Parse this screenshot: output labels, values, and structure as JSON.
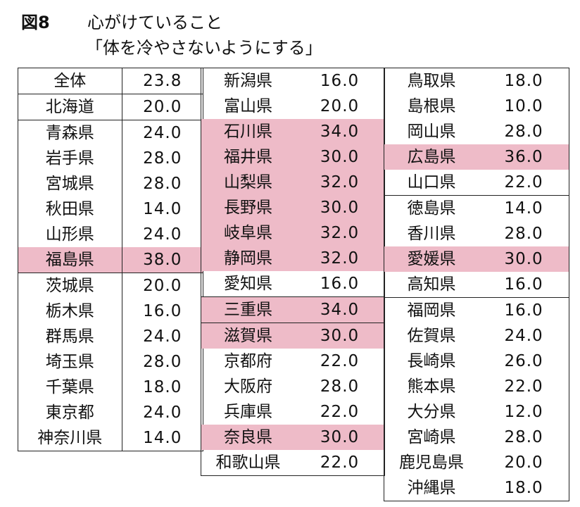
{
  "title": {
    "label": "図8",
    "line1": "心がけていること",
    "line2": "「体を冷やさないようにする」"
  },
  "columns": [
    {
      "id": "col1",
      "rows": [
        {
          "name": "全体",
          "value": "23.8",
          "highlight": false,
          "sep": false
        },
        {
          "name": "北海道",
          "value": "20.0",
          "highlight": false,
          "sep": true
        },
        {
          "name": "青森県",
          "value": "24.0",
          "highlight": false,
          "sep": true
        },
        {
          "name": "岩手県",
          "value": "28.0",
          "highlight": false,
          "sep": false
        },
        {
          "name": "宮城県",
          "value": "28.0",
          "highlight": false,
          "sep": false
        },
        {
          "name": "秋田県",
          "value": "14.0",
          "highlight": false,
          "sep": false
        },
        {
          "name": "山形県",
          "value": "24.0",
          "highlight": false,
          "sep": false
        },
        {
          "name": "福島県",
          "value": "38.0",
          "highlight": true,
          "sep": false
        },
        {
          "name": "茨城県",
          "value": "20.0",
          "highlight": false,
          "sep": true
        },
        {
          "name": "栃木県",
          "value": "16.0",
          "highlight": false,
          "sep": false
        },
        {
          "name": "群馬県",
          "value": "24.0",
          "highlight": false,
          "sep": false
        },
        {
          "name": "埼玉県",
          "value": "28.0",
          "highlight": false,
          "sep": false
        },
        {
          "name": "千葉県",
          "value": "18.0",
          "highlight": false,
          "sep": false
        },
        {
          "name": "東京都",
          "value": "24.0",
          "highlight": false,
          "sep": false
        },
        {
          "name": "神奈川県",
          "value": "14.0",
          "highlight": false,
          "sep": false
        }
      ]
    },
    {
      "id": "col2",
      "rows": [
        {
          "name": "新潟県",
          "value": "16.0",
          "highlight": false,
          "sep": false
        },
        {
          "name": "富山県",
          "value": "20.0",
          "highlight": false,
          "sep": false
        },
        {
          "name": "石川県",
          "value": "34.0",
          "highlight": true,
          "sep": false
        },
        {
          "name": "福井県",
          "value": "30.0",
          "highlight": true,
          "sep": false
        },
        {
          "name": "山梨県",
          "value": "32.0",
          "highlight": true,
          "sep": false
        },
        {
          "name": "長野県",
          "value": "30.0",
          "highlight": true,
          "sep": false
        },
        {
          "name": "岐阜県",
          "value": "32.0",
          "highlight": true,
          "sep": false
        },
        {
          "name": "静岡県",
          "value": "32.0",
          "highlight": true,
          "sep": false
        },
        {
          "name": "愛知県",
          "value": "16.0",
          "highlight": false,
          "sep": false
        },
        {
          "name": "三重県",
          "value": "34.0",
          "highlight": true,
          "sep": true
        },
        {
          "name": "滋賀県",
          "value": "30.0",
          "highlight": true,
          "sep": true
        },
        {
          "name": "京都府",
          "value": "22.0",
          "highlight": false,
          "sep": false
        },
        {
          "name": "大阪府",
          "value": "28.0",
          "highlight": false,
          "sep": false
        },
        {
          "name": "兵庫県",
          "value": "22.0",
          "highlight": false,
          "sep": false
        },
        {
          "name": "奈良県",
          "value": "30.0",
          "highlight": true,
          "sep": false
        },
        {
          "name": "和歌山県",
          "value": "22.0",
          "highlight": false,
          "sep": false
        }
      ]
    },
    {
      "id": "col3",
      "rows": [
        {
          "name": "鳥取県",
          "value": "18.0",
          "highlight": false,
          "sep": false
        },
        {
          "name": "島根県",
          "value": "10.0",
          "highlight": false,
          "sep": false
        },
        {
          "name": "岡山県",
          "value": "28.0",
          "highlight": false,
          "sep": false
        },
        {
          "name": "広島県",
          "value": "36.0",
          "highlight": true,
          "sep": false
        },
        {
          "name": "山口県",
          "value": "22.0",
          "highlight": false,
          "sep": false
        },
        {
          "name": "徳島県",
          "value": "14.0",
          "highlight": false,
          "sep": true
        },
        {
          "name": "香川県",
          "value": "28.0",
          "highlight": false,
          "sep": false
        },
        {
          "name": "愛媛県",
          "value": "30.0",
          "highlight": true,
          "sep": false
        },
        {
          "name": "高知県",
          "value": "16.0",
          "highlight": false,
          "sep": false
        },
        {
          "name": "福岡県",
          "value": "16.0",
          "highlight": false,
          "sep": true
        },
        {
          "name": "佐賀県",
          "value": "24.0",
          "highlight": false,
          "sep": false
        },
        {
          "name": "長崎県",
          "value": "26.0",
          "highlight": false,
          "sep": false
        },
        {
          "name": "熊本県",
          "value": "22.0",
          "highlight": false,
          "sep": false
        },
        {
          "name": "大分県",
          "value": "12.0",
          "highlight": false,
          "sep": false
        },
        {
          "name": "宮崎県",
          "value": "28.0",
          "highlight": false,
          "sep": false
        },
        {
          "name": "鹿児島県",
          "value": "20.0",
          "highlight": false,
          "sep": false
        },
        {
          "name": "沖縄県",
          "value": "18.0",
          "highlight": false,
          "sep": false
        }
      ]
    }
  ],
  "colors": {
    "highlight": "#eebbc8",
    "border": "#222222"
  }
}
